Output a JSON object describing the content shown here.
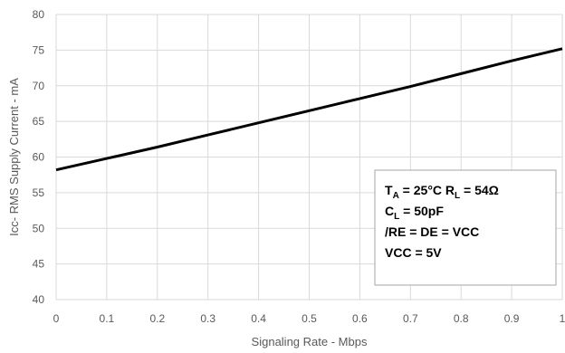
{
  "chart_data": {
    "type": "line",
    "title": "",
    "xlabel": "Signaling Rate - Mbps",
    "ylabel": "Icc- RMS Supply Current - mA",
    "xlim": [
      0,
      1
    ],
    "ylim": [
      40,
      80
    ],
    "xticks": [
      "0",
      "0.1",
      "0.2",
      "0.3",
      "0.4",
      "0.5",
      "0.6",
      "0.7",
      "0.8",
      "0.9",
      "1"
    ],
    "yticks": [
      "40",
      "45",
      "50",
      "55",
      "60",
      "65",
      "70",
      "75",
      "80"
    ],
    "grid": true,
    "line_color": "#000000",
    "grid_color": "#d9d9d9",
    "series": [
      {
        "x": [
          0,
          0.1,
          0.2,
          0.3,
          0.4,
          0.5,
          0.6,
          0.7,
          0.8,
          0.9,
          1.0
        ],
        "y": [
          58.2,
          59.8,
          61.4,
          63.1,
          64.8,
          66.5,
          68.2,
          69.9,
          71.7,
          73.5,
          75.2
        ]
      }
    ],
    "annotation": {
      "lines": [
        [
          {
            "t": "T"
          },
          {
            "t": "A",
            "sub": true
          },
          {
            "t": " = 25°C  R"
          },
          {
            "t": "L",
            "sub": true
          },
          {
            "t": " = 54Ω"
          }
        ],
        [
          {
            "t": "C"
          },
          {
            "t": "L",
            "sub": true
          },
          {
            "t": " = 50pF"
          }
        ],
        [
          {
            "t": "/RE = DE = VCC"
          }
        ],
        [
          {
            "t": "VCC = 5V"
          }
        ]
      ]
    }
  }
}
